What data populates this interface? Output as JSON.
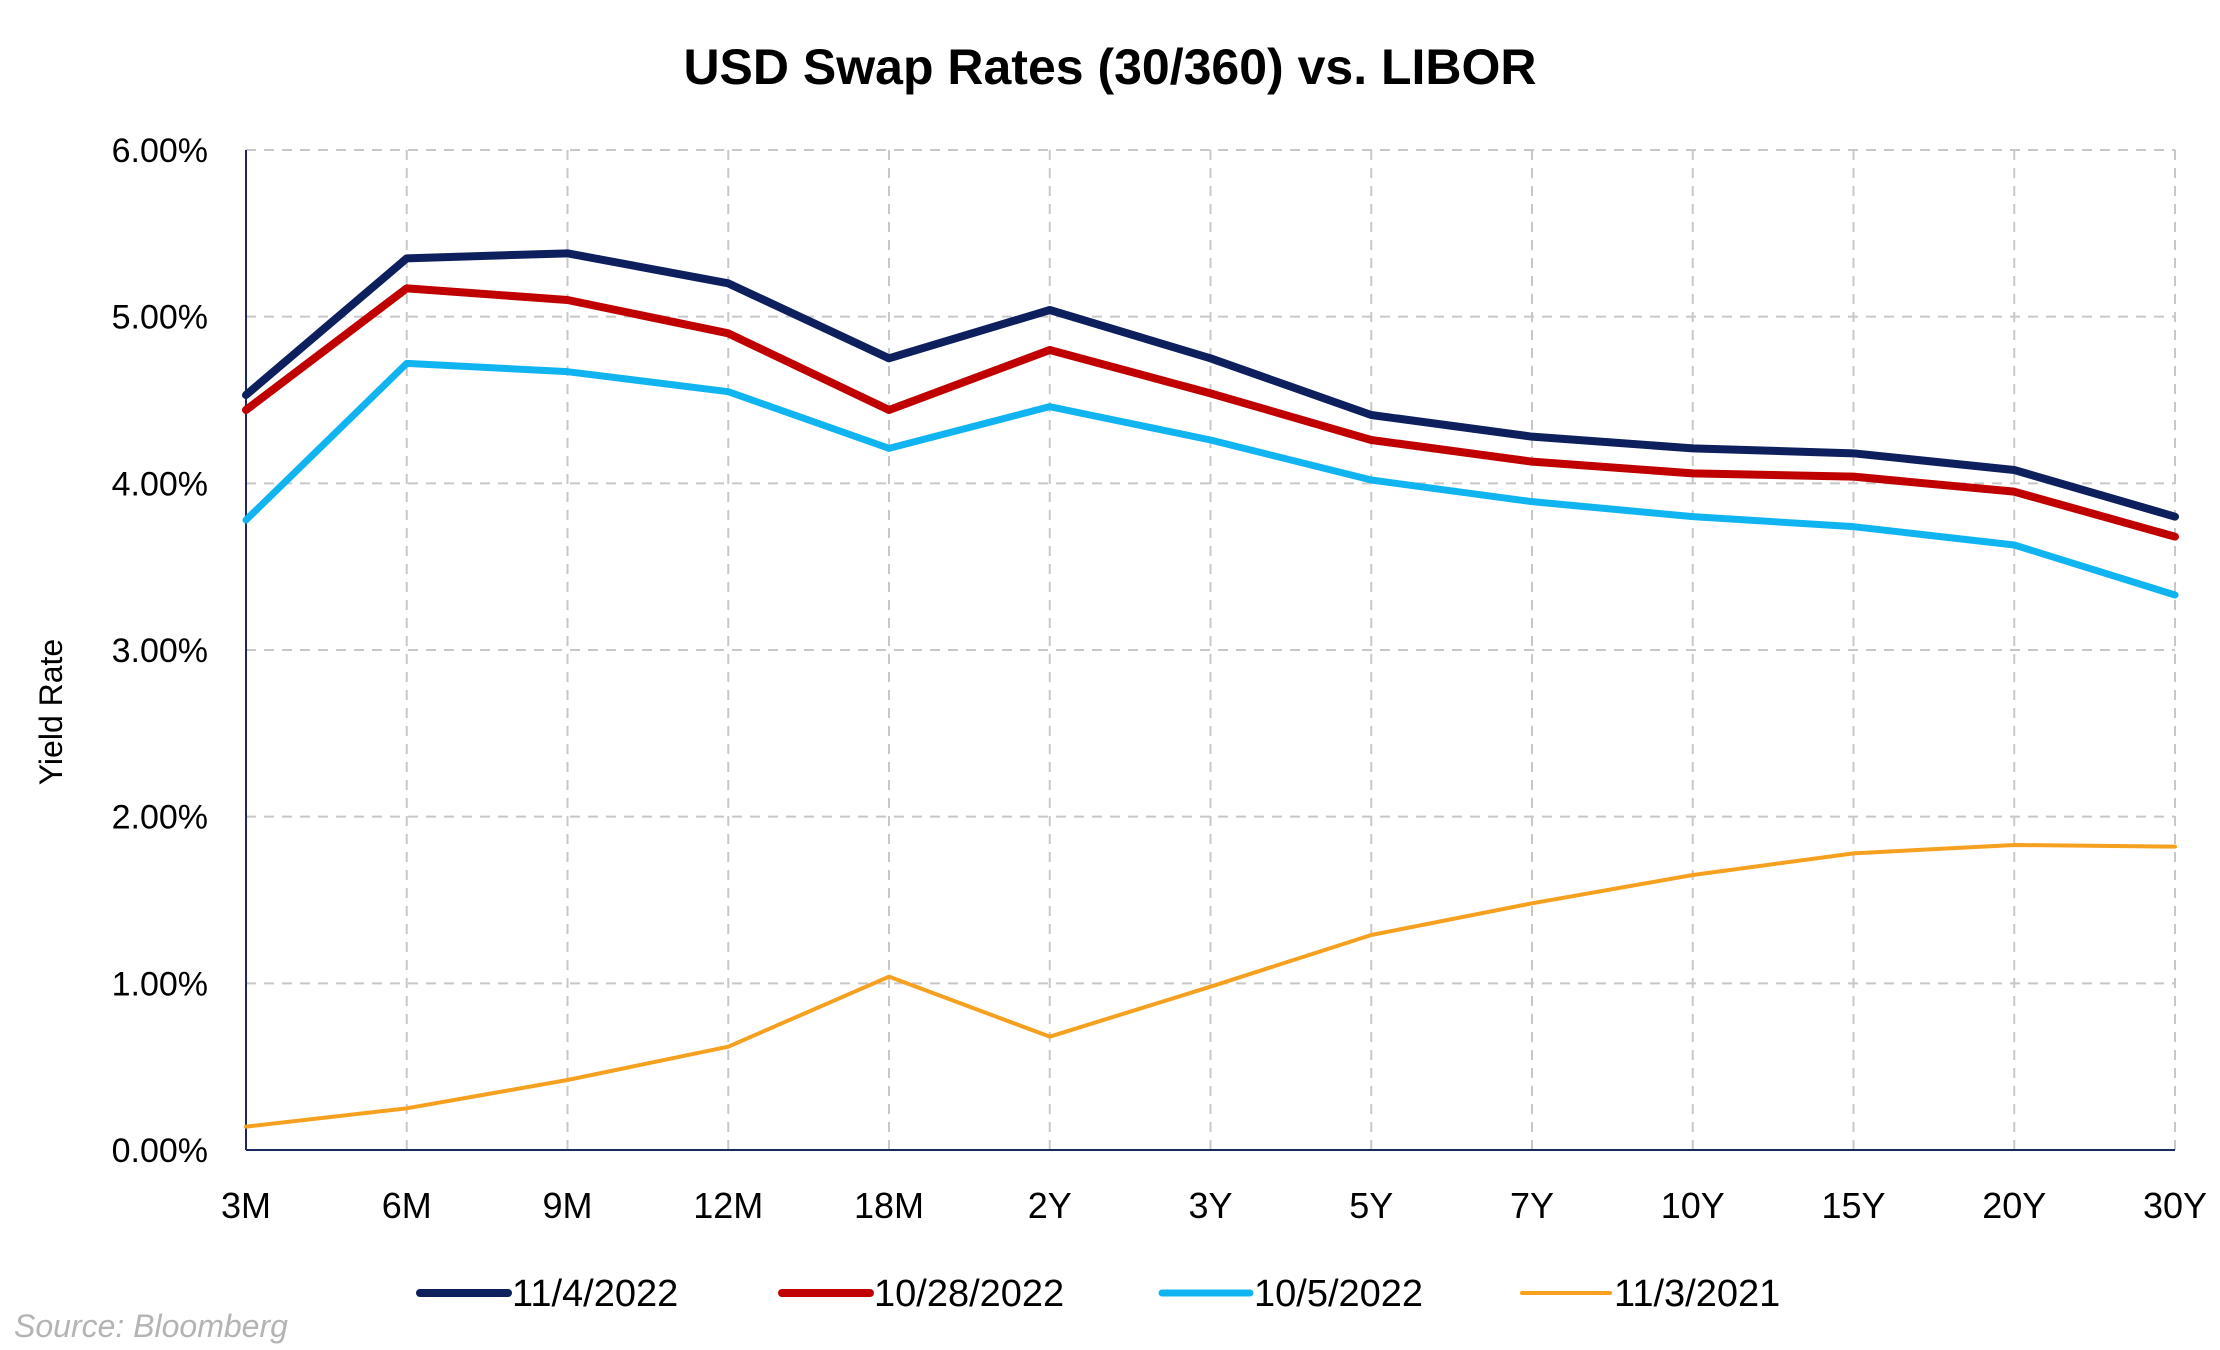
{
  "chart_data": {
    "type": "line",
    "title": "USD Swap Rates (30/360) vs. LIBOR",
    "xlabel": "",
    "ylabel": "Yield Rate",
    "categories": [
      "3M",
      "6M",
      "9M",
      "12M",
      "18M",
      "2Y",
      "3Y",
      "5Y",
      "7Y",
      "10Y",
      "15Y",
      "20Y",
      "30Y"
    ],
    "ylim": [
      0,
      6
    ],
    "yticks": [
      "0.00%",
      "1.00%",
      "2.00%",
      "3.00%",
      "4.00%",
      "5.00%",
      "6.00%"
    ],
    "grid": true,
    "legend_position": "bottom",
    "series": [
      {
        "name": "11/4/2022",
        "color": "#0d1f5c",
        "values": [
          4.53,
          5.35,
          5.38,
          5.2,
          4.75,
          5.04,
          4.75,
          4.41,
          4.28,
          4.21,
          4.18,
          4.08,
          3.8
        ]
      },
      {
        "name": "10/28/2022",
        "color": "#c00000",
        "values": [
          4.44,
          5.17,
          5.1,
          4.9,
          4.44,
          4.8,
          4.54,
          4.26,
          4.13,
          4.06,
          4.04,
          3.95,
          3.68
        ]
      },
      {
        "name": "10/5/2022",
        "color": "#10b4f0",
        "values": [
          3.78,
          4.72,
          4.67,
          4.55,
          4.21,
          4.46,
          4.26,
          4.02,
          3.89,
          3.8,
          3.74,
          3.63,
          3.33
        ]
      },
      {
        "name": "11/3/2021",
        "color": "#f5a01e",
        "values": [
          0.14,
          0.25,
          0.42,
          0.62,
          1.04,
          0.68,
          0.98,
          1.29,
          1.48,
          1.65,
          1.78,
          1.83,
          1.82
        ]
      }
    ]
  },
  "source": "Source: Bloomberg"
}
